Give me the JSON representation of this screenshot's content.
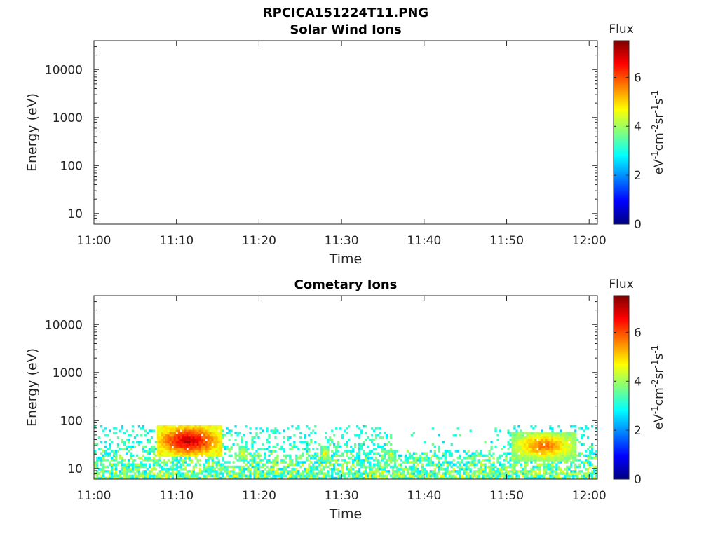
{
  "figure": {
    "title": "RPCICA151224T11.PNG"
  },
  "colorbar": {
    "label": "Flux",
    "unit_base": [
      "eV",
      "cm",
      "sr",
      "s"
    ],
    "unit_sup": [
      "-1",
      "-2",
      "-1",
      "-1"
    ],
    "ticks": [
      0,
      2,
      4,
      6
    ],
    "range": [
      0,
      7.5
    ],
    "colormap": "jet"
  },
  "chart_data": [
    {
      "type": "heatmap",
      "title": "Solar Wind Ions",
      "xlabel": "Time",
      "ylabel": "Energy (eV)",
      "x_ticks": [
        "11:00",
        "11:10",
        "11:20",
        "11:30",
        "11:40",
        "11:50",
        "12:00"
      ],
      "y_ticks": [
        10,
        100,
        1000,
        10000
      ],
      "y_scale": "log",
      "ylim": [
        6,
        40000
      ],
      "xlim_minutes": [
        0,
        61
      ],
      "cells": []
    },
    {
      "type": "heatmap",
      "title": "Cometary Ions",
      "xlabel": "Time",
      "ylabel": "Energy (eV)",
      "x_ticks": [
        "11:00",
        "11:10",
        "11:20",
        "11:30",
        "11:40",
        "11:50",
        "12:00"
      ],
      "y_ticks": [
        10,
        100,
        1000,
        10000
      ],
      "y_scale": "log",
      "ylim": [
        6,
        40000
      ],
      "xlim_minutes": [
        0,
        61
      ],
      "energy_range_eV": [
        6,
        80
      ],
      "hotspots": [
        {
          "t_start": 7.5,
          "t_end": 15.5,
          "e_low": 18,
          "e_high": 80,
          "peak_flux": 7.2
        },
        {
          "t_start": 17.5,
          "t_end": 18.5,
          "e_low": 15,
          "e_high": 30,
          "peak_flux": 5.0
        },
        {
          "t_start": 27.5,
          "t_end": 28.5,
          "e_low": 15,
          "e_high": 30,
          "peak_flux": 5.0
        },
        {
          "t_start": 35.5,
          "t_end": 36.5,
          "e_low": 15,
          "e_high": 25,
          "peak_flux": 4.8
        },
        {
          "t_start": 50.5,
          "t_end": 58.5,
          "e_low": 15,
          "e_high": 60,
          "peak_flux": 6.0
        }
      ],
      "background_flux_range": [
        2.5,
        4.8
      ]
    }
  ]
}
